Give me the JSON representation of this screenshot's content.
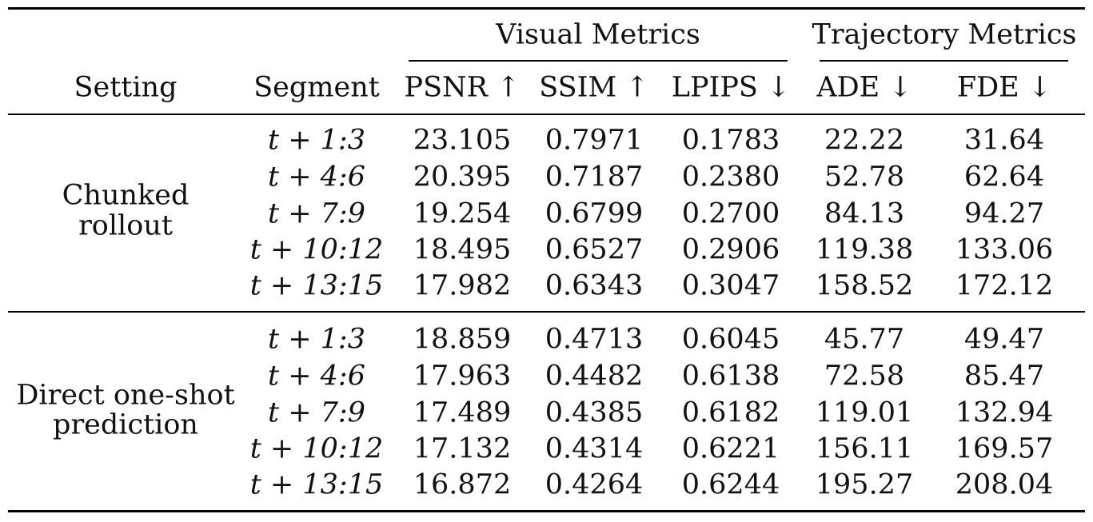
{
  "header": {
    "group_visual": "Visual Metrics",
    "group_trajectory": "Trajectory Metrics",
    "columns": [
      "Setting",
      "Segment",
      "PSNR ↑",
      "SSIM ↑",
      "LPIPS ↓",
      "ADE ↓",
      "FDE ↓"
    ]
  },
  "groups": [
    {
      "setting": [
        "Chunked",
        "rollout"
      ],
      "rows": [
        {
          "segment": "t + 1:3",
          "psnr": "23.105",
          "ssim": "0.7971",
          "lpips": "0.1783",
          "ade": "22.22",
          "fde": "31.64"
        },
        {
          "segment": "t + 4:6",
          "psnr": "20.395",
          "ssim": "0.7187",
          "lpips": "0.2380",
          "ade": "52.78",
          "fde": "62.64"
        },
        {
          "segment": "t + 7:9",
          "psnr": "19.254",
          "ssim": "0.6799",
          "lpips": "0.2700",
          "ade": "84.13",
          "fde": "94.27"
        },
        {
          "segment": "t + 10:12",
          "psnr": "18.495",
          "ssim": "0.6527",
          "lpips": "0.2906",
          "ade": "119.38",
          "fde": "133.06"
        },
        {
          "segment": "t + 13:15",
          "psnr": "17.982",
          "ssim": "0.6343",
          "lpips": "0.3047",
          "ade": "158.52",
          "fde": "172.12"
        }
      ]
    },
    {
      "setting": [
        "Direct one-shot",
        "prediction"
      ],
      "rows": [
        {
          "segment": "t + 1:3",
          "psnr": "18.859",
          "ssim": "0.4713",
          "lpips": "0.6045",
          "ade": "45.77",
          "fde": "49.47"
        },
        {
          "segment": "t + 4:6",
          "psnr": "17.963",
          "ssim": "0.4482",
          "lpips": "0.6138",
          "ade": "72.58",
          "fde": "85.47"
        },
        {
          "segment": "t + 7:9",
          "psnr": "17.489",
          "ssim": "0.4385",
          "lpips": "0.6182",
          "ade": "119.01",
          "fde": "132.94"
        },
        {
          "segment": "t + 10:12",
          "psnr": "17.132",
          "ssim": "0.4314",
          "lpips": "0.6221",
          "ade": "156.11",
          "fde": "169.57"
        },
        {
          "segment": "t + 13:15",
          "psnr": "16.872",
          "ssim": "0.4264",
          "lpips": "0.6244",
          "ade": "195.27",
          "fde": "208.04"
        }
      ]
    }
  ]
}
